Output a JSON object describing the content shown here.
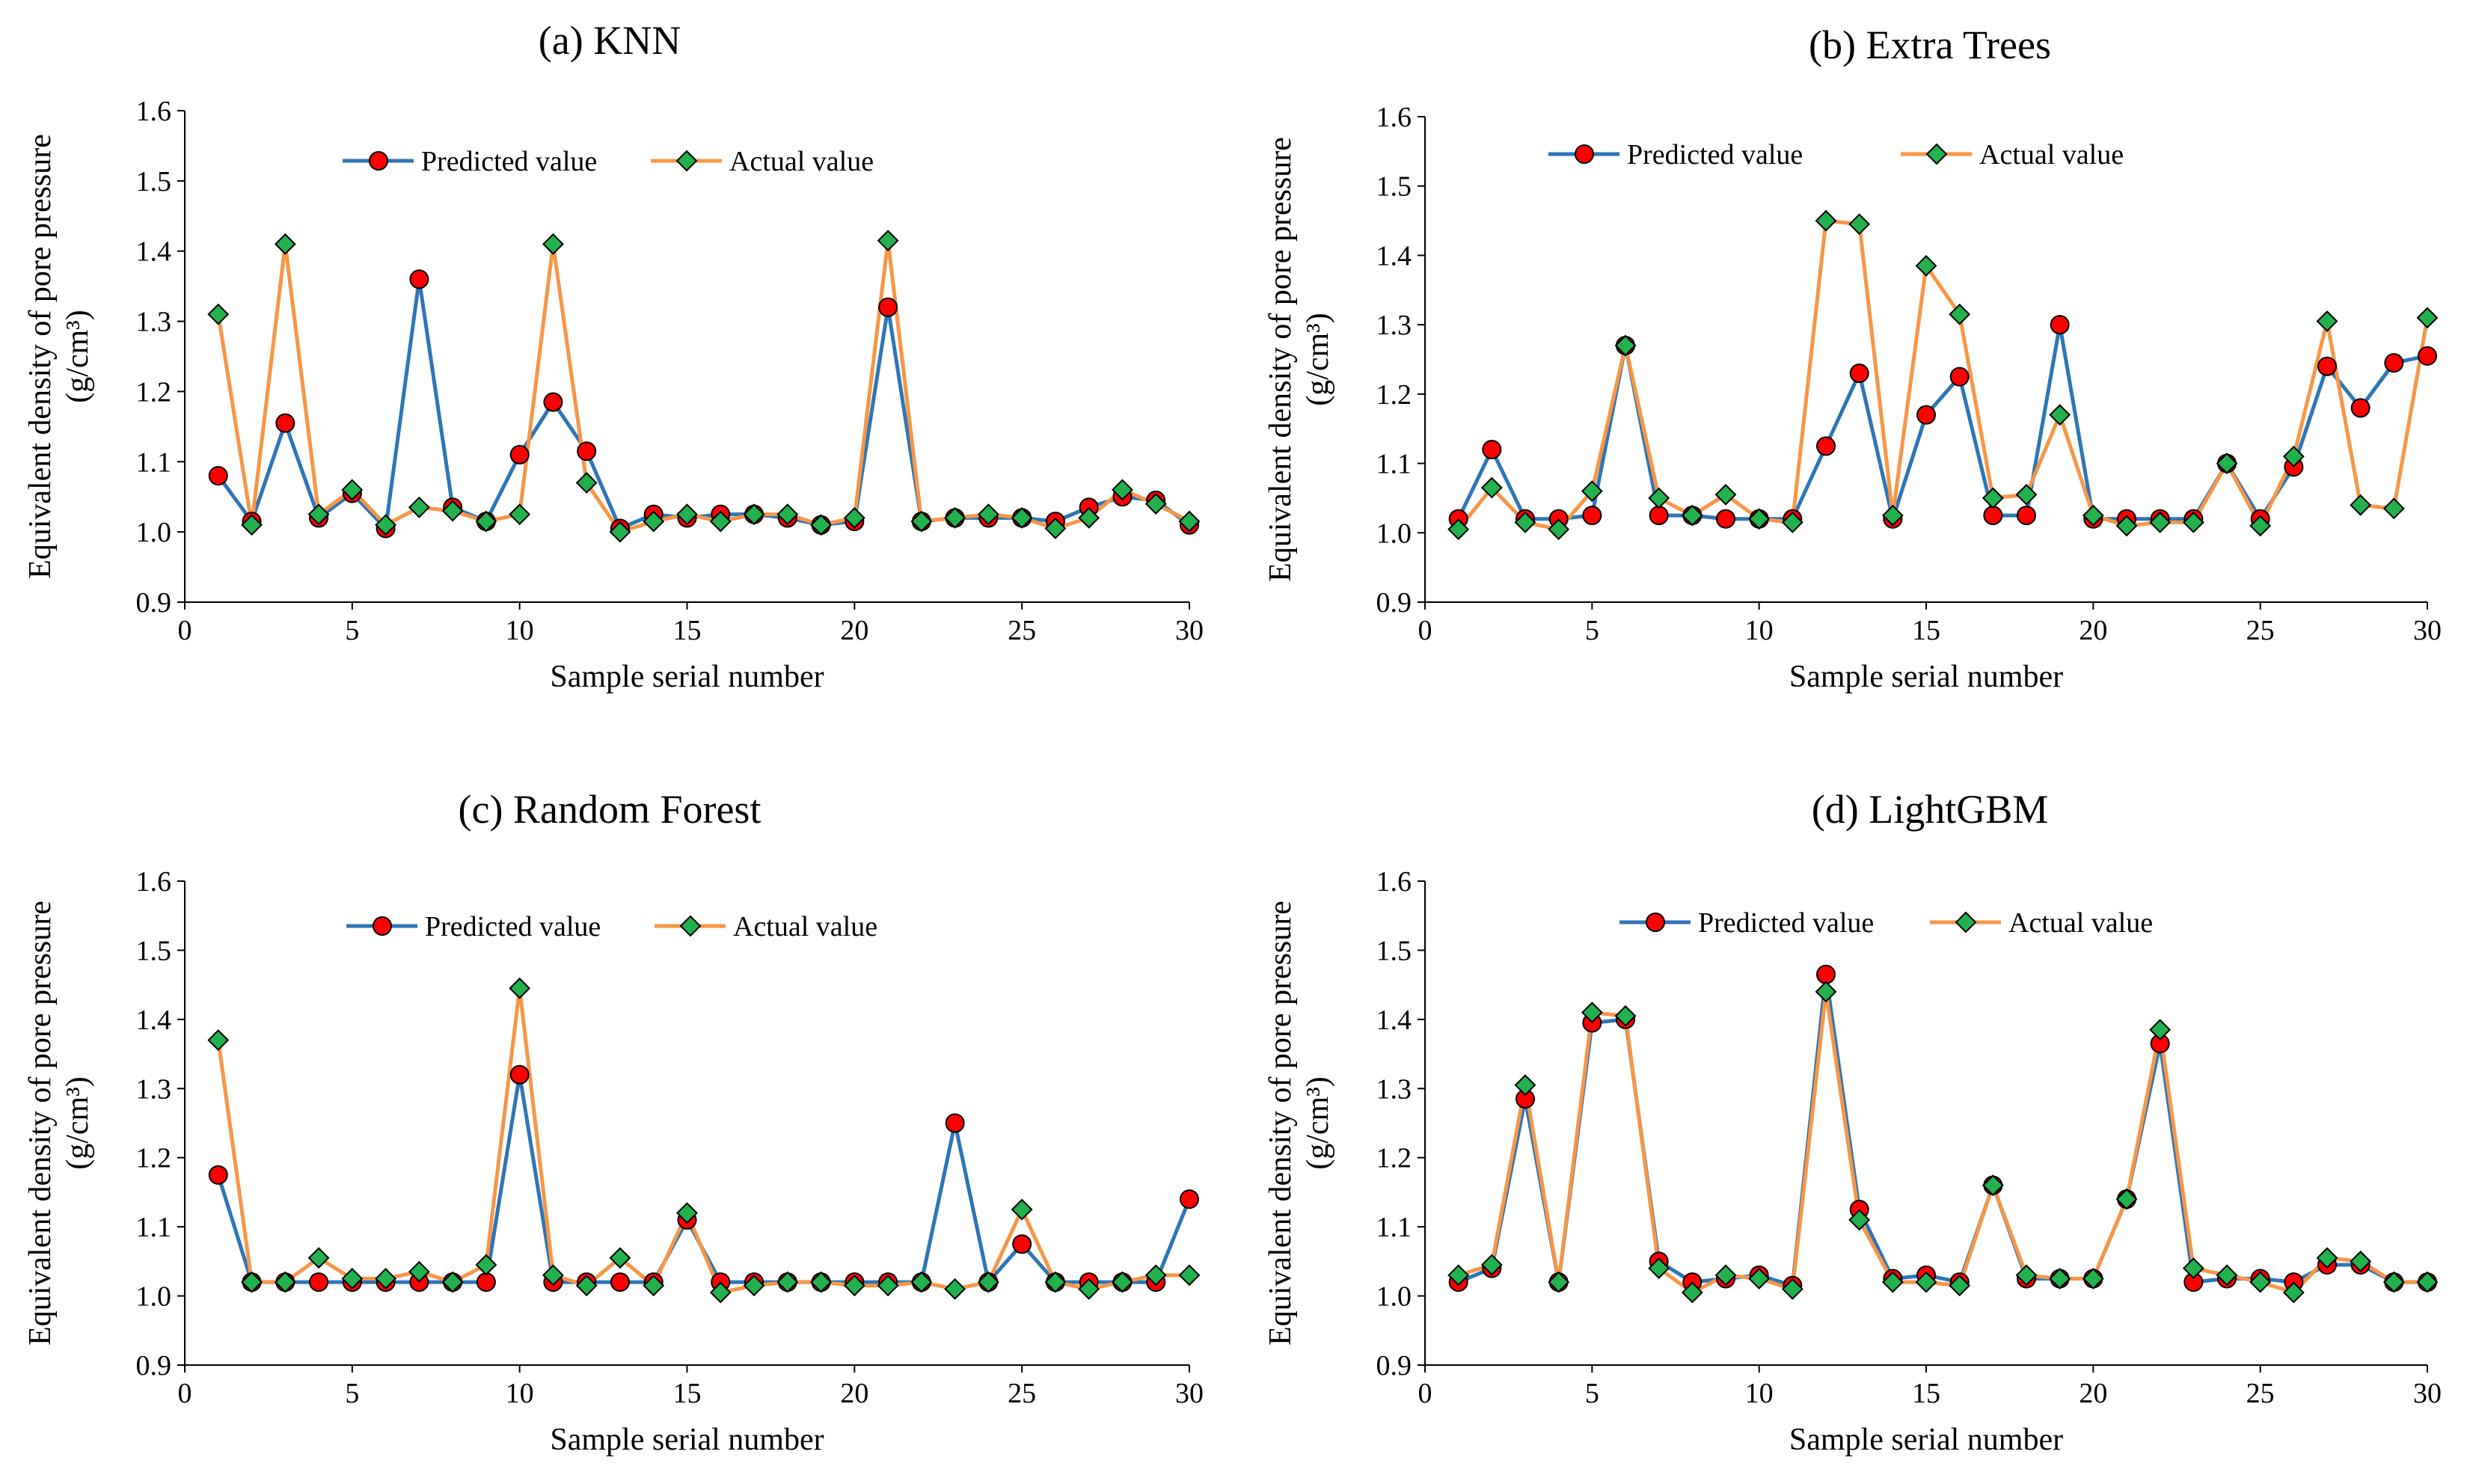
{
  "chart_data": [
    {
      "type": "line",
      "title": "(a) KNN",
      "xlabel": "Sample serial number",
      "ylabel": "Equivalent density of pore pressure",
      "ylabel_unit": "(g/cm³)",
      "xlim": [
        0,
        30
      ],
      "ylim": [
        0.9,
        1.6
      ],
      "xticks": [
        "0",
        "5",
        "10",
        "15",
        "20",
        "25",
        "30"
      ],
      "yticks": [
        "0.9",
        "1.0",
        "1.1",
        "1.2",
        "1.3",
        "1.4",
        "1.5",
        "1.6"
      ],
      "legend_position": "top",
      "x": [
        1,
        2,
        3,
        4,
        5,
        6,
        7,
        8,
        9,
        10,
        11,
        12,
        13,
        14,
        15,
        16,
        17,
        18,
        19,
        20,
        21,
        22,
        23,
        24,
        25,
        26,
        27,
        28,
        29,
        30
      ],
      "series": [
        {
          "name": "Predicted value",
          "color": "#2E75B6",
          "marker": "circle",
          "marker_color": "#FF0000",
          "values": [
            1.08,
            1.015,
            1.155,
            1.02,
            1.055,
            1.005,
            1.36,
            1.035,
            1.015,
            1.11,
            1.185,
            1.115,
            1.005,
            1.025,
            1.02,
            1.025,
            1.025,
            1.02,
            1.01,
            1.015,
            1.32,
            1.015,
            1.02,
            1.02,
            1.02,
            1.015,
            1.035,
            1.05,
            1.045,
            1.01
          ]
        },
        {
          "name": "Actual value",
          "color": "#F79646",
          "marker": "diamond",
          "marker_color": "#22B14C",
          "values": [
            1.31,
            1.01,
            1.41,
            1.025,
            1.06,
            1.01,
            1.035,
            1.03,
            1.015,
            1.025,
            1.41,
            1.07,
            1.0,
            1.015,
            1.025,
            1.015,
            1.025,
            1.025,
            1.01,
            1.02,
            1.415,
            1.015,
            1.02,
            1.025,
            1.02,
            1.005,
            1.02,
            1.06,
            1.04,
            1.015
          ]
        }
      ]
    },
    {
      "type": "line",
      "title": "(b) Extra Trees",
      "xlabel": "Sample serial number",
      "ylabel": "Equivalent density of pore pressure",
      "ylabel_unit": "(g/cm³)",
      "xlim": [
        0,
        30
      ],
      "ylim": [
        0.9,
        1.6
      ],
      "xticks": [
        "0",
        "5",
        "10",
        "15",
        "20",
        "25",
        "30"
      ],
      "yticks": [
        "0.9",
        "1.0",
        "1.1",
        "1.2",
        "1.3",
        "1.4",
        "1.5",
        "1.6"
      ],
      "legend_position": "top",
      "x": [
        1,
        2,
        3,
        4,
        5,
        6,
        7,
        8,
        9,
        10,
        11,
        12,
        13,
        14,
        15,
        16,
        17,
        18,
        19,
        20,
        21,
        22,
        23,
        24,
        25,
        26,
        27,
        28,
        29,
        30
      ],
      "series": [
        {
          "name": "Predicted value",
          "color": "#2E75B6",
          "marker": "circle",
          "marker_color": "#FF0000",
          "values": [
            1.02,
            1.12,
            1.02,
            1.02,
            1.025,
            1.27,
            1.025,
            1.025,
            1.02,
            1.02,
            1.02,
            1.125,
            1.23,
            1.02,
            1.17,
            1.225,
            1.025,
            1.025,
            1.3,
            1.02,
            1.02,
            1.02,
            1.02,
            1.1,
            1.02,
            1.095,
            1.24,
            1.18,
            1.245,
            1.255
          ]
        },
        {
          "name": "Actual value",
          "color": "#F79646",
          "marker": "diamond",
          "marker_color": "#22B14C",
          "values": [
            1.005,
            1.065,
            1.015,
            1.005,
            1.06,
            1.27,
            1.05,
            1.025,
            1.055,
            1.02,
            1.015,
            1.45,
            1.445,
            1.025,
            1.385,
            1.315,
            1.05,
            1.055,
            1.17,
            1.025,
            1.01,
            1.015,
            1.015,
            1.1,
            1.01,
            1.11,
            1.305,
            1.04,
            1.035,
            1.31
          ]
        }
      ]
    },
    {
      "type": "line",
      "title": "(c) Random Forest",
      "xlabel": "Sample serial number",
      "ylabel": "Equivalent density of pore pressure",
      "ylabel_unit": "(g/cm³)",
      "xlim": [
        0,
        30
      ],
      "ylim": [
        0.9,
        1.6
      ],
      "xticks": [
        "0",
        "5",
        "10",
        "15",
        "20",
        "25",
        "30"
      ],
      "yticks": [
        "0.9",
        "1.0",
        "1.1",
        "1.2",
        "1.3",
        "1.4",
        "1.5",
        "1.6"
      ],
      "legend_position": "top",
      "x": [
        1,
        2,
        3,
        4,
        5,
        6,
        7,
        8,
        9,
        10,
        11,
        12,
        13,
        14,
        15,
        16,
        17,
        18,
        19,
        20,
        21,
        22,
        23,
        24,
        25,
        26,
        27,
        28,
        29,
        30
      ],
      "series": [
        {
          "name": "Predicted value",
          "color": "#2E75B6",
          "marker": "circle",
          "marker_color": "#FF0000",
          "values": [
            1.175,
            1.02,
            1.02,
            1.02,
            1.02,
            1.02,
            1.02,
            1.02,
            1.02,
            1.32,
            1.02,
            1.02,
            1.02,
            1.02,
            1.11,
            1.02,
            1.02,
            1.02,
            1.02,
            1.02,
            1.02,
            1.02,
            1.25,
            1.02,
            1.075,
            1.02,
            1.02,
            1.02,
            1.02,
            1.14
          ]
        },
        {
          "name": "Actual value",
          "color": "#F79646",
          "marker": "diamond",
          "marker_color": "#22B14C",
          "values": [
            1.37,
            1.02,
            1.02,
            1.055,
            1.025,
            1.025,
            1.035,
            1.02,
            1.045,
            1.445,
            1.03,
            1.015,
            1.055,
            1.015,
            1.12,
            1.005,
            1.015,
            1.02,
            1.02,
            1.015,
            1.015,
            1.02,
            1.01,
            1.02,
            1.125,
            1.02,
            1.01,
            1.02,
            1.03,
            1.03
          ]
        }
      ]
    },
    {
      "type": "line",
      "title": "(d) LightGBM",
      "xlabel": "Sample serial number",
      "ylabel": "Equivalent density of pore pressure",
      "ylabel_unit": "(g/cm³)",
      "xlim": [
        0,
        30
      ],
      "ylim": [
        0.9,
        1.6
      ],
      "xticks": [
        "0",
        "5",
        "10",
        "15",
        "20",
        "25",
        "30"
      ],
      "yticks": [
        "0.9",
        "1.0",
        "1.1",
        "1.2",
        "1.3",
        "1.4",
        "1.5",
        "1.6"
      ],
      "legend_position": "top",
      "x": [
        1,
        2,
        3,
        4,
        5,
        6,
        7,
        8,
        9,
        10,
        11,
        12,
        13,
        14,
        15,
        16,
        17,
        18,
        19,
        20,
        21,
        22,
        23,
        24,
        25,
        26,
        27,
        28,
        29,
        30
      ],
      "series": [
        {
          "name": "Predicted value",
          "color": "#2E75B6",
          "marker": "circle",
          "marker_color": "#FF0000",
          "values": [
            1.02,
            1.04,
            1.285,
            1.02,
            1.395,
            1.4,
            1.05,
            1.02,
            1.025,
            1.03,
            1.015,
            1.465,
            1.125,
            1.025,
            1.03,
            1.02,
            1.16,
            1.025,
            1.025,
            1.025,
            1.14,
            1.365,
            1.02,
            1.025,
            1.025,
            1.02,
            1.045,
            1.045,
            1.02,
            1.02
          ]
        },
        {
          "name": "Actual value",
          "color": "#F79646",
          "marker": "diamond",
          "marker_color": "#22B14C",
          "values": [
            1.03,
            1.045,
            1.305,
            1.02,
            1.41,
            1.405,
            1.04,
            1.005,
            1.03,
            1.025,
            1.01,
            1.44,
            1.11,
            1.02,
            1.02,
            1.015,
            1.16,
            1.03,
            1.025,
            1.025,
            1.14,
            1.385,
            1.04,
            1.03,
            1.02,
            1.005,
            1.055,
            1.05,
            1.02,
            1.02
          ]
        }
      ]
    }
  ]
}
